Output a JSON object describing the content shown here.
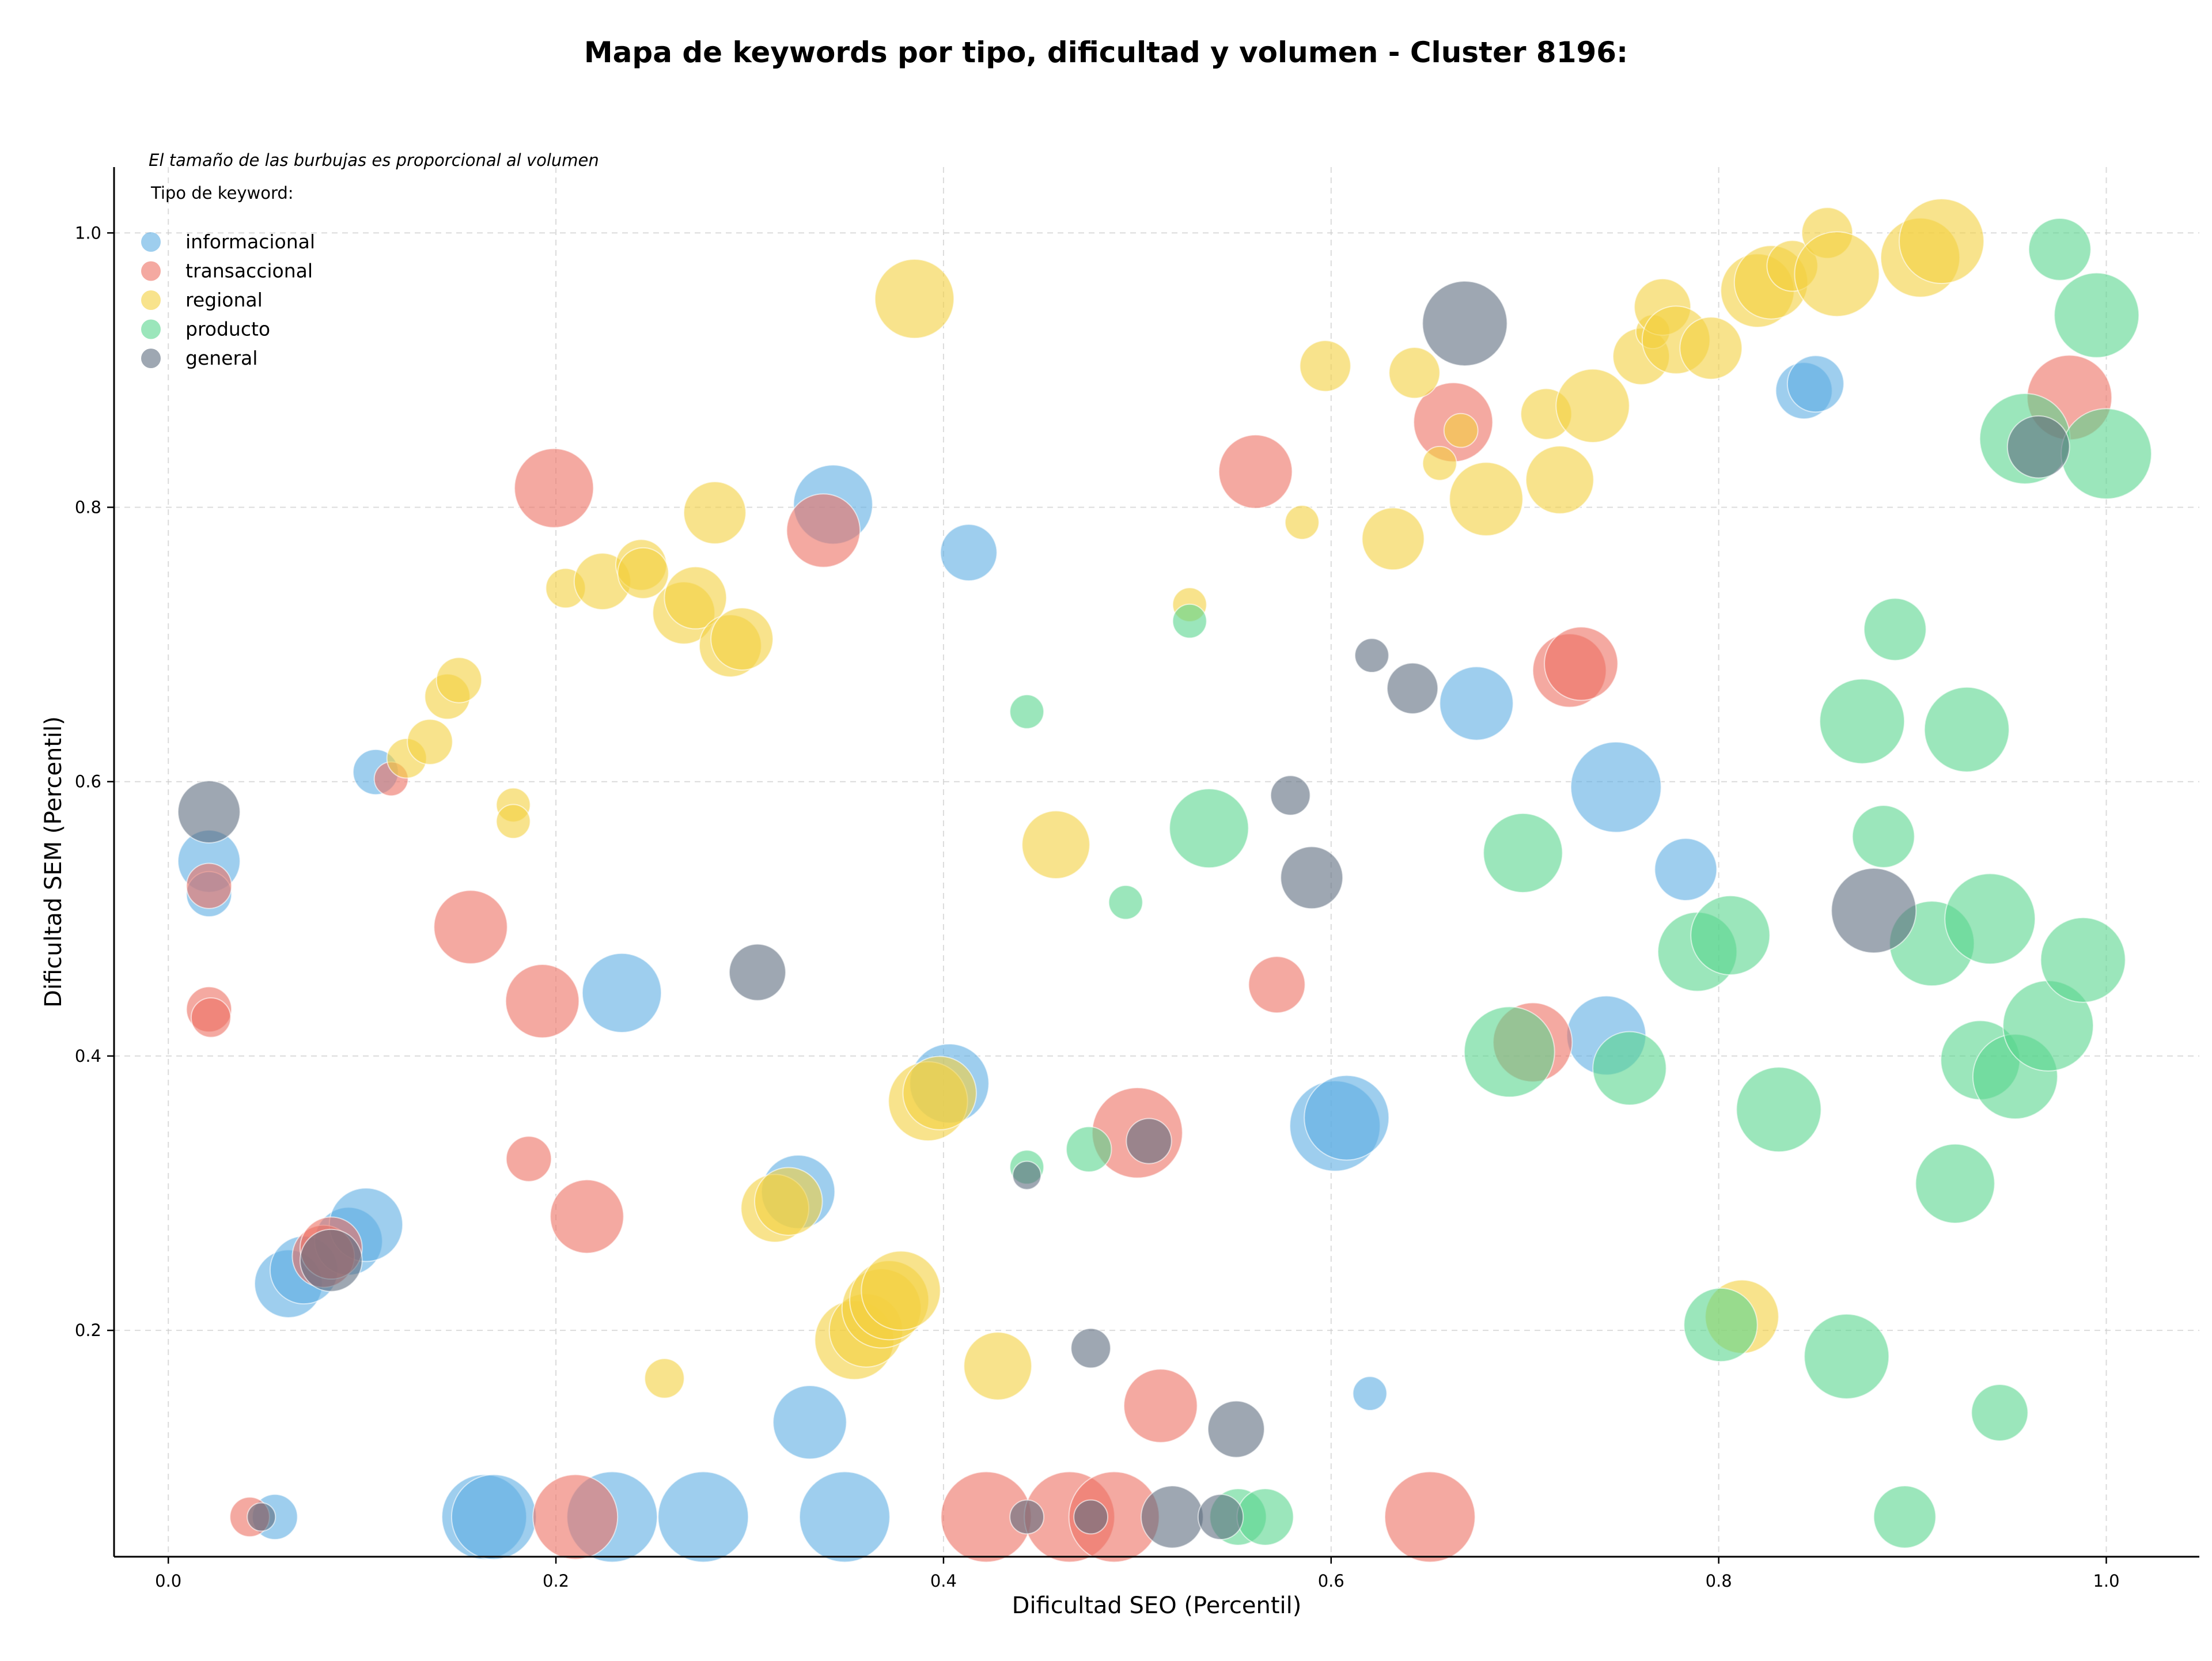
{
  "chart_data": {
    "type": "scatter",
    "title": "Mapa de keywords por tipo, dificultad y volumen - Cluster 8196:",
    "xlabel": "Dificultad SEO (Percentil)",
    "ylabel": "Dificultad SEM (Percentil)",
    "annotation": "El tamaño de las burbujas es proporcional al volumen",
    "legend_title": "Tipo de keyword:",
    "legend_position": "top-left",
    "grid": true,
    "xlim": [
      -0.028,
      1.048
    ],
    "ylim": [
      0.035,
      1.048
    ],
    "x_ticks": [
      "0.0",
      "0.2",
      "0.4",
      "0.6",
      "0.8",
      "1.0"
    ],
    "y_ticks": [
      "0.2",
      "0.4",
      "0.6",
      "0.8",
      "1.0"
    ],
    "series": [
      {
        "name": "informacional",
        "color": "#5dade2",
        "points": [
          [
            0.021,
            0.542,
            22
          ],
          [
            0.021,
            0.518,
            16
          ],
          [
            0.107,
            0.607,
            16
          ],
          [
            0.055,
            0.064,
            16
          ],
          [
            0.062,
            0.234,
            24
          ],
          [
            0.07,
            0.244,
            24
          ],
          [
            0.093,
            0.265,
            24
          ],
          [
            0.102,
            0.277,
            26
          ],
          [
            0.234,
            0.446,
            28
          ],
          [
            0.163,
            0.064,
            30
          ],
          [
            0.168,
            0.064,
            30
          ],
          [
            0.229,
            0.064,
            32
          ],
          [
            0.276,
            0.064,
            32
          ],
          [
            0.349,
            0.064,
            32
          ],
          [
            0.331,
            0.133,
            26
          ],
          [
            0.325,
            0.301,
            26
          ],
          [
            0.343,
            0.802,
            28
          ],
          [
            0.413,
            0.767,
            20
          ],
          [
            0.403,
            0.38,
            28
          ],
          [
            0.602,
            0.349,
            32
          ],
          [
            0.608,
            0.355,
            30
          ],
          [
            0.62,
            0.154,
            12
          ],
          [
            0.675,
            0.657,
            26
          ],
          [
            0.747,
            0.596,
            32
          ],
          [
            0.783,
            0.536,
            22
          ],
          [
            0.742,
            0.415,
            28
          ],
          [
            0.844,
            0.885,
            20
          ],
          [
            0.85,
            0.89,
            20
          ]
        ]
      },
      {
        "name": "transaccional",
        "color": "#ec7063",
        "points": [
          [
            0.021,
            0.524,
            16
          ],
          [
            0.021,
            0.434,
            16
          ],
          [
            0.022,
            0.428,
            14
          ],
          [
            0.042,
            0.064,
            14
          ],
          [
            0.115,
            0.602,
            12
          ],
          [
            0.08,
            0.254,
            22
          ],
          [
            0.084,
            0.26,
            22
          ],
          [
            0.156,
            0.494,
            26
          ],
          [
            0.193,
            0.44,
            26
          ],
          [
            0.199,
            0.814,
            28
          ],
          [
            0.186,
            0.325,
            16
          ],
          [
            0.216,
            0.283,
            26
          ],
          [
            0.21,
            0.064,
            30
          ],
          [
            0.338,
            0.783,
            26
          ],
          [
            0.422,
            0.064,
            32
          ],
          [
            0.465,
            0.064,
            32
          ],
          [
            0.488,
            0.064,
            32
          ],
          [
            0.5,
            0.344,
            32
          ],
          [
            0.512,
            0.145,
            26
          ],
          [
            0.561,
            0.826,
            26
          ],
          [
            0.572,
            0.452,
            20
          ],
          [
            0.651,
            0.064,
            32
          ],
          [
            0.663,
            0.862,
            28
          ],
          [
            0.723,
            0.681,
            26
          ],
          [
            0.729,
            0.686,
            26
          ],
          [
            0.704,
            0.41,
            28
          ],
          [
            0.981,
            0.88,
            30
          ]
        ]
      },
      {
        "name": "regional",
        "color": "#f4d03f",
        "points": [
          [
            0.123,
            0.617,
            14
          ],
          [
            0.135,
            0.629,
            16
          ],
          [
            0.144,
            0.662,
            16
          ],
          [
            0.15,
            0.674,
            16
          ],
          [
            0.178,
            0.583,
            12
          ],
          [
            0.178,
            0.571,
            12
          ],
          [
            0.205,
            0.741,
            14
          ],
          [
            0.224,
            0.746,
            20
          ],
          [
            0.244,
            0.758,
            18
          ],
          [
            0.245,
            0.752,
            18
          ],
          [
            0.256,
            0.165,
            14
          ],
          [
            0.266,
            0.723,
            22
          ],
          [
            0.272,
            0.734,
            22
          ],
          [
            0.282,
            0.796,
            22
          ],
          [
            0.29,
            0.699,
            22
          ],
          [
            0.296,
            0.704,
            22
          ],
          [
            0.385,
            0.952,
            28
          ],
          [
            0.313,
            0.289,
            24
          ],
          [
            0.32,
            0.294,
            24
          ],
          [
            0.354,
            0.193,
            28
          ],
          [
            0.36,
            0.2,
            26
          ],
          [
            0.368,
            0.216,
            28
          ],
          [
            0.372,
            0.222,
            28
          ],
          [
            0.378,
            0.229,
            28
          ],
          [
            0.392,
            0.367,
            28
          ],
          [
            0.398,
            0.373,
            26
          ],
          [
            0.428,
            0.174,
            24
          ],
          [
            0.458,
            0.554,
            24
          ],
          [
            0.527,
            0.729,
            12
          ],
          [
            0.585,
            0.789,
            12
          ],
          [
            0.597,
            0.903,
            18
          ],
          [
            0.632,
            0.777,
            22
          ],
          [
            0.643,
            0.898,
            18
          ],
          [
            0.656,
            0.832,
            12
          ],
          [
            0.667,
            0.856,
            12
          ],
          [
            0.68,
            0.806,
            26
          ],
          [
            0.711,
            0.868,
            18
          ],
          [
            0.718,
            0.82,
            24
          ],
          [
            0.735,
            0.874,
            26
          ],
          [
            0.76,
            0.91,
            20
          ],
          [
            0.766,
            0.928,
            12
          ],
          [
            0.771,
            0.946,
            20
          ],
          [
            0.778,
            0.922,
            24
          ],
          [
            0.796,
            0.916,
            22
          ],
          [
            0.82,
            0.958,
            26
          ],
          [
            0.827,
            0.964,
            26
          ],
          [
            0.838,
            0.976,
            18
          ],
          [
            0.856,
            1.0,
            18
          ],
          [
            0.861,
            0.97,
            30
          ],
          [
            0.904,
            0.982,
            28
          ],
          [
            0.915,
            0.994,
            30
          ],
          [
            0.812,
            0.21,
            26
          ]
        ]
      },
      {
        "name": "producto",
        "color": "#58d68d",
        "points": [
          [
            0.443,
            0.651,
            12
          ],
          [
            0.443,
            0.319,
            12
          ],
          [
            0.475,
            0.332,
            16
          ],
          [
            0.494,
            0.512,
            12
          ],
          [
            0.527,
            0.717,
            12
          ],
          [
            0.537,
            0.566,
            28
          ],
          [
            0.552,
            0.064,
            20
          ],
          [
            0.566,
            0.064,
            20
          ],
          [
            0.692,
            0.403,
            32
          ],
          [
            0.699,
            0.548,
            28
          ],
          [
            0.754,
            0.391,
            26
          ],
          [
            0.789,
            0.476,
            28
          ],
          [
            0.806,
            0.488,
            28
          ],
          [
            0.801,
            0.204,
            26
          ],
          [
            0.831,
            0.361,
            30
          ],
          [
            0.866,
            0.181,
            30
          ],
          [
            0.874,
            0.644,
            30
          ],
          [
            0.885,
            0.56,
            22
          ],
          [
            0.891,
            0.711,
            22
          ],
          [
            0.896,
            0.064,
            22
          ],
          [
            0.91,
            0.482,
            30
          ],
          [
            0.922,
            0.307,
            28
          ],
          [
            0.928,
            0.638,
            30
          ],
          [
            0.935,
            0.397,
            28
          ],
          [
            0.94,
            0.5,
            32
          ],
          [
            0.945,
            0.14,
            20
          ],
          [
            0.953,
            0.385,
            30
          ],
          [
            0.958,
            0.85,
            32
          ],
          [
            0.97,
            0.422,
            32
          ],
          [
            0.976,
            0.988,
            22
          ],
          [
            0.988,
            0.47,
            30
          ],
          [
            0.995,
            0.94,
            30
          ],
          [
            1.0,
            0.839,
            32
          ]
        ]
      },
      {
        "name": "general",
        "color": "#5d6d7e",
        "points": [
          [
            0.021,
            0.578,
            22
          ],
          [
            0.048,
            0.064,
            10
          ],
          [
            0.084,
            0.251,
            22
          ],
          [
            0.304,
            0.461,
            20
          ],
          [
            0.443,
            0.064,
            12
          ],
          [
            0.443,
            0.313,
            10
          ],
          [
            0.476,
            0.064,
            12
          ],
          [
            0.476,
            0.187,
            14
          ],
          [
            0.506,
            0.338,
            16
          ],
          [
            0.518,
            0.064,
            22
          ],
          [
            0.543,
            0.064,
            16
          ],
          [
            0.551,
            0.128,
            20
          ],
          [
            0.579,
            0.59,
            14
          ],
          [
            0.59,
            0.53,
            22
          ],
          [
            0.621,
            0.692,
            12
          ],
          [
            0.642,
            0.668,
            18
          ],
          [
            0.669,
            0.934,
            30
          ],
          [
            0.88,
            0.506,
            30
          ],
          [
            0.965,
            0.844,
            22
          ]
        ]
      }
    ]
  }
}
